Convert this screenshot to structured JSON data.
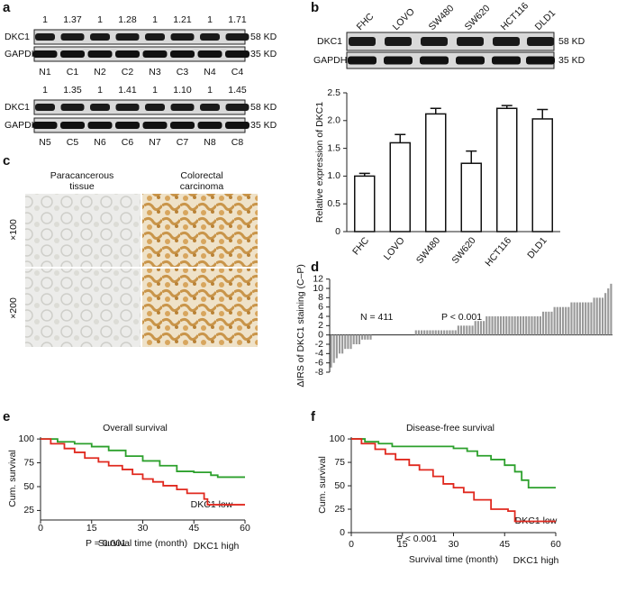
{
  "panels": [
    "a",
    "b",
    "c",
    "d",
    "e",
    "f"
  ],
  "blot_a": {
    "bands": [
      "DKC1",
      "GAPDH"
    ],
    "sizes": [
      "58 KD",
      "35 KD"
    ],
    "rows": [
      {
        "ratios": [
          "1",
          "1.37",
          "1",
          "1.28",
          "1",
          "1.21",
          "1",
          "1.71"
        ],
        "lanes": [
          "N1",
          "C1",
          "N2",
          "C2",
          "N3",
          "C3",
          "N4",
          "C4"
        ]
      },
      {
        "ratios": [
          "1",
          "1.35",
          "1",
          "1.41",
          "1",
          "1.10",
          "1",
          "1.45"
        ],
        "lanes": [
          "N5",
          "C5",
          "N6",
          "C6",
          "N7",
          "C7",
          "N8",
          "C8"
        ]
      }
    ]
  },
  "blot_b": {
    "bands": [
      "DKC1",
      "GAPDH"
    ],
    "sizes": [
      "58 KD",
      "35 KD"
    ]
  },
  "histology": {
    "columns": [
      [
        "Paracancerous",
        "tissue"
      ],
      [
        "Colorectal",
        "carcinoma"
      ]
    ],
    "rows": [
      "×100",
      "×200"
    ]
  },
  "chart_data": [
    {
      "type": "bar",
      "ylabel": "Relative expression of DKC1",
      "categories": [
        "FHC",
        "LOVO",
        "SW480",
        "SW620",
        "HCT116",
        "DLD1"
      ],
      "values": [
        1.0,
        1.6,
        2.12,
        1.23,
        2.22,
        2.03
      ],
      "errors": [
        0.05,
        0.15,
        0.1,
        0.22,
        0.05,
        0.17
      ],
      "color": "#ffffff",
      "ylim": [
        0,
        2.5
      ],
      "yticks": [
        0,
        0.5,
        {
          "value": 1,
          "label": "1.0"
        },
        1.5,
        {
          "value": 2,
          "label": "2.0"
        },
        2.5
      ]
    },
    {
      "type": "bar",
      "ylabel": "ΔIRS of DKC1 staining (C–P)",
      "annotations": [
        "N = 411",
        "P < 0.001"
      ],
      "values": [
        -7,
        -6,
        -5,
        -4,
        -4,
        -3,
        -3,
        -3,
        -2,
        -2,
        -2,
        -1,
        -1,
        -1,
        -1,
        0,
        0,
        0,
        0,
        0,
        0,
        0,
        0,
        0,
        0,
        0,
        0,
        0,
        0,
        0,
        1,
        1,
        1,
        1,
        1,
        1,
        1,
        1,
        1,
        1,
        1,
        1,
        1,
        1,
        1,
        2,
        2,
        2,
        2,
        2,
        2,
        3,
        3,
        3,
        3,
        4,
        4,
        4,
        4,
        4,
        4,
        4,
        4,
        4,
        4,
        4,
        4,
        4,
        4,
        4,
        4,
        4,
        4,
        4,
        4,
        5,
        5,
        5,
        5,
        6,
        6,
        6,
        6,
        6,
        6,
        7,
        7,
        7,
        7,
        7,
        7,
        7,
        7,
        8,
        8,
        8,
        8,
        9,
        10,
        11
      ],
      "color": "#999999",
      "ylim": [
        -8,
        12
      ],
      "yticks": [
        -8,
        -6,
        -4,
        -2,
        0,
        2,
        4,
        6,
        8,
        10,
        12
      ]
    },
    {
      "type": "line",
      "title": "Overall survival",
      "xlabel": "Survival time (month)",
      "ylabel": "Cum. survival",
      "annotations": [
        "P = 0.001"
      ],
      "xlim": [
        0,
        60
      ],
      "xticks": [
        0,
        15,
        30,
        45,
        60
      ],
      "ylim": [
        15,
        102
      ],
      "yticks": [
        25,
        50,
        75,
        100
      ],
      "series": [
        {
          "name": "DKC1 low",
          "color": "#2ca02c",
          "x": [
            0,
            5,
            5,
            10,
            10,
            15,
            15,
            20,
            20,
            25,
            25,
            30,
            30,
            35,
            35,
            40,
            40,
            45,
            45,
            50,
            50,
            52,
            52,
            60
          ],
          "values": [
            100,
            100,
            97,
            97,
            95,
            95,
            92,
            92,
            88,
            88,
            82,
            82,
            77,
            77,
            72,
            72,
            66,
            66,
            65,
            65,
            62,
            62,
            60,
            60
          ]
        },
        {
          "name": "DKC1 high",
          "color": "#e0291f",
          "x": [
            0,
            3,
            3,
            7,
            7,
            10,
            10,
            13,
            13,
            17,
            17,
            20,
            20,
            24,
            24,
            27,
            27,
            30,
            30,
            33,
            33,
            36,
            36,
            40,
            40,
            43,
            43,
            48,
            48,
            49,
            49,
            60
          ],
          "values": [
            100,
            100,
            95,
            95,
            90,
            90,
            86,
            86,
            80,
            80,
            76,
            76,
            72,
            72,
            68,
            68,
            63,
            63,
            58,
            58,
            55,
            55,
            51,
            51,
            47,
            47,
            43,
            43,
            37,
            37,
            31,
            31
          ]
        }
      ]
    },
    {
      "type": "line",
      "title": "Disease-free survival",
      "xlabel": "Survival time (month)",
      "ylabel": "Cum. survival",
      "annotations": [
        "P < 0.001"
      ],
      "xlim": [
        0,
        60
      ],
      "xticks": [
        0,
        15,
        30,
        45,
        60
      ],
      "ylim": [
        0,
        102
      ],
      "yticks": [
        0,
        25,
        50,
        75,
        100
      ],
      "series": [
        {
          "name": "DKC1 low",
          "color": "#2ca02c",
          "x": [
            0,
            4,
            4,
            8,
            8,
            12,
            12,
            30,
            30,
            34,
            34,
            37,
            37,
            41,
            41,
            45,
            45,
            48,
            48,
            50,
            50,
            52,
            52,
            60
          ],
          "values": [
            100,
            100,
            97,
            97,
            95,
            95,
            92,
            92,
            90,
            90,
            87,
            87,
            82,
            82,
            78,
            78,
            72,
            72,
            65,
            65,
            56,
            56,
            48,
            48
          ]
        },
        {
          "name": "DKC1 high",
          "color": "#e0291f",
          "x": [
            0,
            3,
            3,
            7,
            7,
            10,
            10,
            13,
            13,
            17,
            17,
            20,
            20,
            24,
            24,
            27,
            27,
            30,
            30,
            33,
            33,
            36,
            36,
            41,
            41,
            46,
            46,
            48,
            48,
            60
          ],
          "values": [
            100,
            100,
            95,
            95,
            89,
            89,
            84,
            84,
            78,
            78,
            72,
            72,
            67,
            67,
            60,
            60,
            52,
            52,
            48,
            48,
            43,
            43,
            35,
            35,
            25,
            25,
            23,
            23,
            12,
            12
          ]
        }
      ]
    }
  ]
}
